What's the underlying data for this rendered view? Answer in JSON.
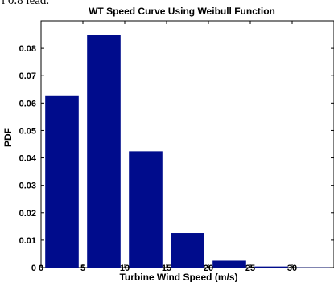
{
  "page": {
    "top_text": "l 0.8 lead."
  },
  "chart_data": {
    "type": "bar",
    "title": "WT Speed Curve Using Weibull Function",
    "xlabel": "Turbine Wind Speed (m/s)",
    "ylabel": "PDF",
    "x": [
      2.5,
      7.5,
      12.5,
      17.5,
      22.5,
      27.5,
      32.5
    ],
    "values": [
      0.0628,
      0.085,
      0.0424,
      0.0126,
      0.0025,
      0.0004,
      0.0001
    ],
    "bar_width": 4,
    "xlim": [
      0,
      35
    ],
    "ylim": [
      0,
      0.09
    ],
    "xticks": [
      0,
      5,
      10,
      15,
      20,
      25,
      30
    ],
    "yticks": [
      0,
      0.01,
      0.02,
      0.03,
      0.04,
      0.05,
      0.06,
      0.07,
      0.08
    ],
    "xtick_labels": [
      "0",
      "5",
      "10",
      "15",
      "20",
      "25",
      "30"
    ],
    "ytick_labels": [
      "0",
      "0.01",
      "0.02",
      "0.03",
      "0.04",
      "0.05",
      "0.06",
      "0.07",
      "0.08"
    ],
    "bar_color": "#000c8c",
    "grid": false,
    "legend": "none"
  }
}
